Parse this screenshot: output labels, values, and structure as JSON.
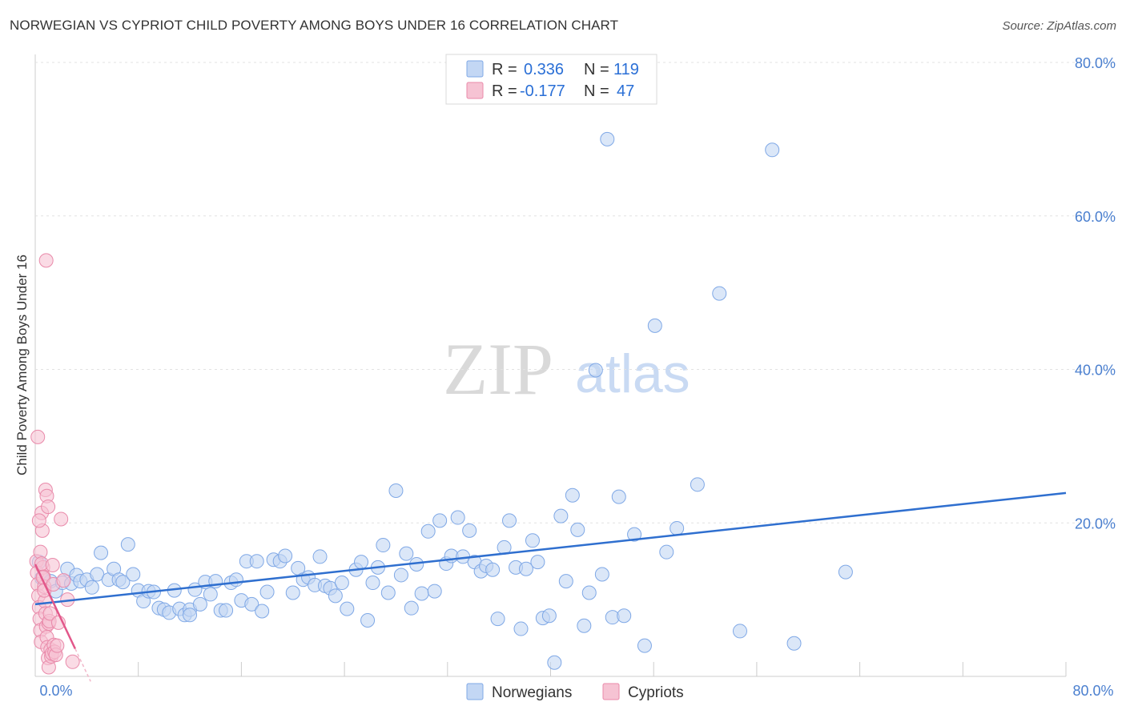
{
  "header": {
    "title": "NORWEGIAN VS CYPRIOT CHILD POVERTY AMONG BOYS UNDER 16 CORRELATION CHART",
    "source": "Source: ZipAtlas.com"
  },
  "watermark": {
    "zip": "ZIP",
    "atlas": "atlas"
  },
  "legend": {
    "rows": [
      {
        "r_label": "R =",
        "r_value": "0.336",
        "n_label": "N =",
        "n_value": "119",
        "color": "#a9c6ef"
      },
      {
        "r_label": "R =",
        "r_value": "-0.177",
        "n_label": "N =",
        "n_value": "47",
        "color": "#f4b6c8"
      }
    ]
  },
  "bottom_legend": [
    {
      "label": "Norwegians",
      "color": "#a9c6ef"
    },
    {
      "label": "Cypriots",
      "color": "#f4b6c8"
    }
  ],
  "chart_data": {
    "type": "scatter",
    "title": "NORWEGIAN VS CYPRIOT CHILD POVERTY AMONG BOYS UNDER 16 CORRELATION CHART",
    "xlabel": "",
    "ylabel": "Child Poverty Among Boys Under 16",
    "xlim": [
      0,
      80
    ],
    "ylim": [
      0,
      80
    ],
    "x_tick_labels": [
      "0.0%",
      "80.0%"
    ],
    "y_tick_labels": [
      "20.0%",
      "40.0%",
      "60.0%",
      "80.0%"
    ],
    "y_ticks": [
      20,
      40,
      60,
      80
    ],
    "grid": true,
    "legend_position": "top-center",
    "series": [
      {
        "name": "Norwegians",
        "color": "#7fa8e6",
        "fill": "#c3d7f4",
        "trend": {
          "x": [
            0,
            80
          ],
          "y": [
            9.4,
            23.9
          ],
          "color": "#2f6fcf"
        },
        "points": [
          [
            0.3,
            14.9
          ],
          [
            0.5,
            12.8
          ],
          [
            1.2,
            12.4
          ],
          [
            1.6,
            11.1
          ],
          [
            2.1,
            12.2
          ],
          [
            2.5,
            14.0
          ],
          [
            2.8,
            12.1
          ],
          [
            3.2,
            13.2
          ],
          [
            3.5,
            12.4
          ],
          [
            4.0,
            12.6
          ],
          [
            4.4,
            11.6
          ],
          [
            4.8,
            13.3
          ],
          [
            5.1,
            16.1
          ],
          [
            5.7,
            12.6
          ],
          [
            6.1,
            14.0
          ],
          [
            6.5,
            12.6
          ],
          [
            6.8,
            12.3
          ],
          [
            7.2,
            17.2
          ],
          [
            7.6,
            13.3
          ],
          [
            8.0,
            11.2
          ],
          [
            8.4,
            9.8
          ],
          [
            8.8,
            11.1
          ],
          [
            9.2,
            11.0
          ],
          [
            9.6,
            8.9
          ],
          [
            10.0,
            8.7
          ],
          [
            10.4,
            8.3
          ],
          [
            10.8,
            11.2
          ],
          [
            11.2,
            8.8
          ],
          [
            11.6,
            8.0
          ],
          [
            12.0,
            8.7
          ],
          [
            12.4,
            11.3
          ],
          [
            12.8,
            9.4
          ],
          [
            13.2,
            12.3
          ],
          [
            13.6,
            10.7
          ],
          [
            14.0,
            12.4
          ],
          [
            14.4,
            8.6
          ],
          [
            14.8,
            8.6
          ],
          [
            15.2,
            12.2
          ],
          [
            15.6,
            12.6
          ],
          [
            16.0,
            9.9
          ],
          [
            16.4,
            15.0
          ],
          [
            16.8,
            9.4
          ],
          [
            17.2,
            15.0
          ],
          [
            17.6,
            8.5
          ],
          [
            18.0,
            11.0
          ],
          [
            18.5,
            15.2
          ],
          [
            19.0,
            15.0
          ],
          [
            19.4,
            15.7
          ],
          [
            20.0,
            10.9
          ],
          [
            20.4,
            14.1
          ],
          [
            20.8,
            12.6
          ],
          [
            21.2,
            12.9
          ],
          [
            21.7,
            11.9
          ],
          [
            22.1,
            15.6
          ],
          [
            22.5,
            11.8
          ],
          [
            22.9,
            11.5
          ],
          [
            23.3,
            10.5
          ],
          [
            23.8,
            12.2
          ],
          [
            24.2,
            8.8
          ],
          [
            24.9,
            13.9
          ],
          [
            25.3,
            14.9
          ],
          [
            25.8,
            7.3
          ],
          [
            26.2,
            12.2
          ],
          [
            26.6,
            14.2
          ],
          [
            27.0,
            17.1
          ],
          [
            27.4,
            10.9
          ],
          [
            28.0,
            24.2
          ],
          [
            28.4,
            13.2
          ],
          [
            28.8,
            16.0
          ],
          [
            29.2,
            8.9
          ],
          [
            29.6,
            14.6
          ],
          [
            30.0,
            10.8
          ],
          [
            30.5,
            18.9
          ],
          [
            31.0,
            11.1
          ],
          [
            31.4,
            20.3
          ],
          [
            31.9,
            14.7
          ],
          [
            32.3,
            15.7
          ],
          [
            32.8,
            20.7
          ],
          [
            33.2,
            15.6
          ],
          [
            33.7,
            19.0
          ],
          [
            34.1,
            14.9
          ],
          [
            34.6,
            13.7
          ],
          [
            35.0,
            14.4
          ],
          [
            35.5,
            13.9
          ],
          [
            35.9,
            7.5
          ],
          [
            36.4,
            16.8
          ],
          [
            36.8,
            20.3
          ],
          [
            37.3,
            14.2
          ],
          [
            37.7,
            6.2
          ],
          [
            38.1,
            14.0
          ],
          [
            38.6,
            17.7
          ],
          [
            39.0,
            14.9
          ],
          [
            39.4,
            7.6
          ],
          [
            39.9,
            7.9
          ],
          [
            40.3,
            1.8
          ],
          [
            40.8,
            20.9
          ],
          [
            41.2,
            12.4
          ],
          [
            41.7,
            23.6
          ],
          [
            42.1,
            19.1
          ],
          [
            42.6,
            6.6
          ],
          [
            43.0,
            10.9
          ],
          [
            43.5,
            39.9
          ],
          [
            44.0,
            13.3
          ],
          [
            44.4,
            70.0
          ],
          [
            44.8,
            7.7
          ],
          [
            45.3,
            23.4
          ],
          [
            45.7,
            7.9
          ],
          [
            46.5,
            18.5
          ],
          [
            47.3,
            4.0
          ],
          [
            48.1,
            45.7
          ],
          [
            49.0,
            16.2
          ],
          [
            49.8,
            19.3
          ],
          [
            51.4,
            25.0
          ],
          [
            53.1,
            49.9
          ],
          [
            54.7,
            5.9
          ],
          [
            57.2,
            68.6
          ],
          [
            58.9,
            4.3
          ],
          [
            62.9,
            13.6
          ],
          [
            12.0,
            8.0
          ]
        ]
      },
      {
        "name": "Cypriots",
        "color": "#e98aaa",
        "fill": "#f6c3d3",
        "trend": {
          "x": [
            0,
            3.1
          ],
          "y": [
            14.6,
            3.6
          ],
          "color": "#e2578a"
        },
        "points": [
          [
            0.1,
            15.0
          ],
          [
            0.15,
            13.5
          ],
          [
            0.2,
            12.0
          ],
          [
            0.25,
            10.5
          ],
          [
            0.3,
            9.0
          ],
          [
            0.35,
            7.5
          ],
          [
            0.4,
            6.0
          ],
          [
            0.45,
            4.5
          ],
          [
            0.5,
            21.3
          ],
          [
            0.55,
            19.0
          ],
          [
            0.6,
            14.2
          ],
          [
            0.65,
            13.0
          ],
          [
            0.7,
            11.7
          ],
          [
            0.75,
            9.8
          ],
          [
            0.8,
            8.2
          ],
          [
            0.85,
            6.5
          ],
          [
            0.9,
            5.1
          ],
          [
            0.95,
            3.8
          ],
          [
            1.0,
            2.4
          ],
          [
            1.05,
            1.2
          ],
          [
            0.2,
            31.2
          ],
          [
            0.3,
            20.3
          ],
          [
            0.4,
            16.2
          ],
          [
            0.5,
            14.7
          ],
          [
            0.6,
            12.9
          ],
          [
            0.7,
            11.2
          ],
          [
            0.8,
            24.3
          ],
          [
            0.9,
            23.5
          ],
          [
            1.0,
            22.1
          ],
          [
            1.05,
            6.9
          ],
          [
            1.1,
            7.2
          ],
          [
            1.15,
            8.2
          ],
          [
            1.2,
            3.5
          ],
          [
            1.25,
            2.6
          ],
          [
            1.3,
            3.0
          ],
          [
            1.35,
            14.5
          ],
          [
            1.4,
            12.0
          ],
          [
            1.45,
            4.1
          ],
          [
            1.5,
            3.2
          ],
          [
            1.6,
            2.8
          ],
          [
            1.7,
            4.0
          ],
          [
            1.8,
            7.0
          ],
          [
            2.0,
            20.5
          ],
          [
            2.2,
            12.5
          ],
          [
            2.5,
            10.0
          ],
          [
            2.9,
            1.9
          ],
          [
            0.85,
            54.2
          ]
        ]
      }
    ]
  }
}
